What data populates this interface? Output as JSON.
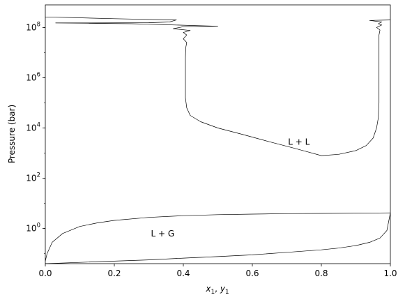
{
  "chart_data": {
    "type": "line",
    "title": "",
    "xlabel_base_1": "x",
    "xlabel_sub_1": "1",
    "xlabel_sep": ", ",
    "xlabel_base_2": "y",
    "xlabel_sub_2": "1",
    "ylabel": "Pressure (bar)",
    "xlim": [
      0.0,
      1.0
    ],
    "ylim_log10": [
      -1.4,
      8.9
    ],
    "y_scale": "log",
    "grid": false,
    "legend": "none",
    "x_ticks": [
      {
        "value": 0.0,
        "label": "0.0"
      },
      {
        "value": 0.2,
        "label": "0.2"
      },
      {
        "value": 0.4,
        "label": "0.4"
      },
      {
        "value": 0.6,
        "label": "0.6"
      },
      {
        "value": 0.8,
        "label": "0.8"
      },
      {
        "value": 1.0,
        "label": "1.0"
      }
    ],
    "y_ticks": [
      {
        "exp": 0,
        "base": "10",
        "sup": "0"
      },
      {
        "exp": 2,
        "base": "10",
        "sup": "2"
      },
      {
        "exp": 4,
        "base": "10",
        "sup": "4"
      },
      {
        "exp": 6,
        "base": "10",
        "sup": "6"
      },
      {
        "exp": 8,
        "base": "10",
        "sup": "8"
      }
    ],
    "annotations": [
      {
        "text": "L + L",
        "x": 0.735,
        "y_log10": 3.45
      },
      {
        "text": "L + G",
        "x": 0.34,
        "y_log10": -0.2
      }
    ],
    "series": [
      {
        "id": "ll-left-branch",
        "color": "#000000",
        "points": [
          [
            0.0,
            8.42
          ],
          [
            0.2,
            8.35
          ],
          [
            0.38,
            8.3
          ],
          [
            0.36,
            8.22
          ],
          [
            0.3,
            8.19
          ],
          [
            0.03,
            8.18
          ],
          [
            0.25,
            8.15
          ],
          [
            0.5,
            8.05
          ],
          [
            0.4,
            8.03
          ],
          [
            0.37,
            7.95
          ],
          [
            0.42,
            7.88
          ],
          [
            0.4,
            7.8
          ],
          [
            0.41,
            7.7
          ],
          [
            0.4,
            7.55
          ],
          [
            0.41,
            7.4
          ],
          [
            0.407,
            7.2
          ],
          [
            0.406,
            6.8
          ],
          [
            0.406,
            6.0
          ],
          [
            0.406,
            5.2
          ],
          [
            0.41,
            4.8
          ],
          [
            0.42,
            4.5
          ],
          [
            0.45,
            4.25
          ],
          [
            0.5,
            4.0
          ],
          [
            0.57,
            3.75
          ],
          [
            0.65,
            3.45
          ],
          [
            0.72,
            3.2
          ],
          [
            0.76,
            3.05
          ],
          [
            0.8,
            2.9
          ]
        ]
      },
      {
        "id": "ll-right-branch",
        "color": "#000000",
        "points": [
          [
            0.8,
            2.9
          ],
          [
            0.85,
            2.95
          ],
          [
            0.9,
            3.1
          ],
          [
            0.93,
            3.3
          ],
          [
            0.95,
            3.6
          ],
          [
            0.96,
            4.0
          ],
          [
            0.965,
            4.4
          ],
          [
            0.967,
            5.0
          ],
          [
            0.967,
            6.0
          ],
          [
            0.967,
            7.0
          ],
          [
            0.967,
            7.7
          ],
          [
            0.97,
            7.9
          ],
          [
            0.96,
            8.0
          ],
          [
            0.975,
            8.1
          ],
          [
            0.965,
            8.15
          ],
          [
            0.975,
            8.22
          ],
          [
            0.94,
            8.28
          ],
          [
            1.0,
            8.3
          ]
        ]
      },
      {
        "id": "bubble-point-curve",
        "color": "#000000",
        "points": [
          [
            0.0,
            -1.4
          ],
          [
            0.1,
            -1.35
          ],
          [
            0.2,
            -1.3
          ],
          [
            0.3,
            -1.25
          ],
          [
            0.4,
            -1.18
          ],
          [
            0.5,
            -1.12
          ],
          [
            0.6,
            -1.05
          ],
          [
            0.7,
            -0.95
          ],
          [
            0.8,
            -0.85
          ],
          [
            0.85,
            -0.78
          ],
          [
            0.9,
            -0.68
          ],
          [
            0.94,
            -0.55
          ],
          [
            0.97,
            -0.38
          ],
          [
            0.99,
            -0.08
          ],
          [
            1.0,
            0.62
          ]
        ]
      },
      {
        "id": "dew-point-curve",
        "color": "#000000",
        "points": [
          [
            0.0,
            -1.3
          ],
          [
            0.005,
            -1.0
          ],
          [
            0.02,
            -0.55
          ],
          [
            0.05,
            -0.2
          ],
          [
            0.1,
            0.08
          ],
          [
            0.15,
            0.22
          ],
          [
            0.2,
            0.32
          ],
          [
            0.3,
            0.44
          ],
          [
            0.4,
            0.51
          ],
          [
            0.5,
            0.55
          ],
          [
            0.6,
            0.57
          ],
          [
            0.7,
            0.59
          ],
          [
            0.8,
            0.6
          ],
          [
            0.9,
            0.61
          ],
          [
            1.0,
            0.62
          ]
        ]
      }
    ]
  }
}
